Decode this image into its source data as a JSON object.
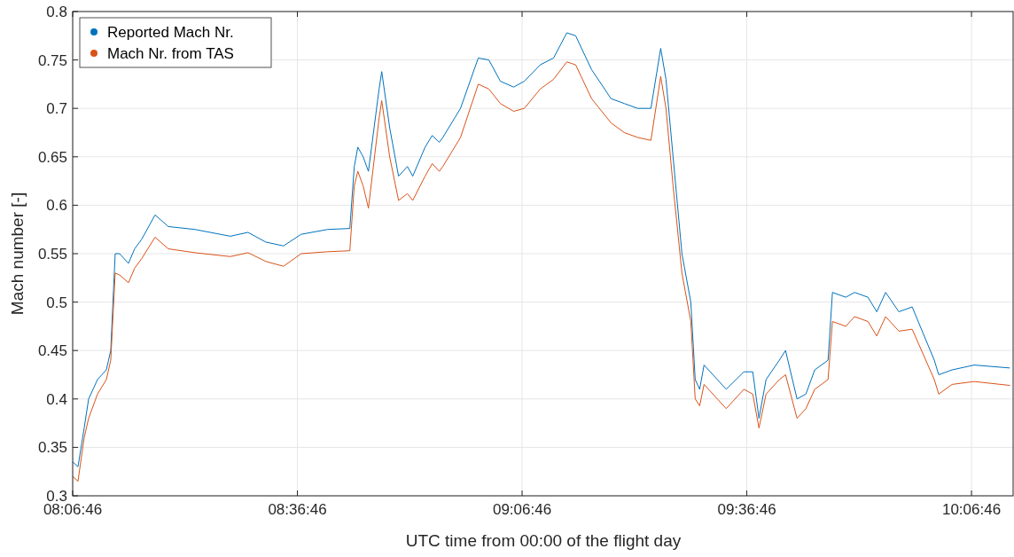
{
  "chart_data": {
    "type": "line",
    "xlabel": "UTC time from 00:00 of the flight day",
    "ylabel": "Mach number  [-]",
    "x": [
      8.1128,
      8.1246,
      8.1384,
      8.1483,
      8.168,
      8.1877,
      8.1975,
      8.2074,
      8.2172,
      8.2369,
      8.2507,
      8.2665,
      8.2961,
      8.3256,
      8.3847,
      8.4635,
      8.5029,
      8.5424,
      8.5818,
      8.6212,
      8.6803,
      8.7295,
      8.7394,
      8.7473,
      8.7591,
      8.7709,
      8.7946,
      8.8005,
      8.8182,
      8.8379,
      8.8576,
      8.8695,
      8.897,
      8.9128,
      8.9286,
      8.9364,
      8.9758,
      9.0153,
      9.0389,
      9.0645,
      9.0941,
      9.1177,
      9.1532,
      9.1828,
      9.2123,
      9.232,
      9.2675,
      9.3108,
      9.3404,
      9.3699,
      9.3995,
      9.4212,
      9.433,
      9.4488,
      9.4685,
      9.4882,
      9.498,
      9.5079,
      9.5177,
      9.5473,
      9.567,
      9.6064,
      9.6261,
      9.6399,
      9.6557,
      9.6852,
      9.699,
      9.7246,
      9.7443,
      9.764,
      9.7936,
      9.8034,
      9.833,
      9.8527,
      9.8823,
      9.902,
      9.9217,
      9.9512,
      9.9808,
      10.03,
      10.0399,
      10.0695,
      10.1187,
      10.1975
    ],
    "series": [
      {
        "name": "Reported Mach Nr.",
        "color": "#0072bd",
        "values": [
          0.335,
          0.33,
          0.37,
          0.4,
          0.42,
          0.43,
          0.45,
          0.55,
          0.55,
          0.54,
          0.555,
          0.565,
          0.59,
          0.578,
          0.575,
          0.568,
          0.572,
          0.562,
          0.558,
          0.57,
          0.575,
          0.576,
          0.64,
          0.66,
          0.65,
          0.635,
          0.72,
          0.738,
          0.68,
          0.63,
          0.64,
          0.63,
          0.66,
          0.672,
          0.665,
          0.67,
          0.7,
          0.752,
          0.75,
          0.728,
          0.722,
          0.728,
          0.745,
          0.752,
          0.778,
          0.775,
          0.74,
          0.71,
          0.705,
          0.7,
          0.7,
          0.762,
          0.73,
          0.65,
          0.55,
          0.5,
          0.42,
          0.41,
          0.435,
          0.42,
          0.41,
          0.428,
          0.428,
          0.38,
          0.42,
          0.44,
          0.45,
          0.4,
          0.405,
          0.43,
          0.44,
          0.51,
          0.505,
          0.51,
          0.505,
          0.49,
          0.51,
          0.49,
          0.495,
          0.44,
          0.425,
          0.43,
          0.435,
          0.432
        ]
      },
      {
        "name": "Mach Nr. from TAS",
        "color": "#d95319",
        "values": [
          0.32,
          0.315,
          0.36,
          0.38,
          0.405,
          0.42,
          0.44,
          0.53,
          0.528,
          0.52,
          0.535,
          0.545,
          0.567,
          0.555,
          0.551,
          0.547,
          0.551,
          0.542,
          0.537,
          0.55,
          0.552,
          0.553,
          0.62,
          0.635,
          0.62,
          0.597,
          0.69,
          0.708,
          0.65,
          0.605,
          0.612,
          0.605,
          0.63,
          0.643,
          0.635,
          0.64,
          0.67,
          0.725,
          0.72,
          0.705,
          0.697,
          0.7,
          0.72,
          0.73,
          0.748,
          0.745,
          0.71,
          0.685,
          0.675,
          0.67,
          0.667,
          0.733,
          0.7,
          0.62,
          0.53,
          0.48,
          0.4,
          0.393,
          0.415,
          0.4,
          0.39,
          0.41,
          0.405,
          0.37,
          0.405,
          0.42,
          0.425,
          0.38,
          0.39,
          0.41,
          0.42,
          0.48,
          0.475,
          0.485,
          0.48,
          0.465,
          0.485,
          0.47,
          0.472,
          0.42,
          0.405,
          0.415,
          0.418,
          0.414
        ]
      }
    ],
    "xlim": [
      8.1128,
      10.2054
    ],
    "xticks": [
      {
        "value": 8.1128,
        "label": "08:06:46"
      },
      {
        "value": 8.6128,
        "label": "08:36:46"
      },
      {
        "value": 9.1128,
        "label": "09:06:46"
      },
      {
        "value": 9.6128,
        "label": "09:36:46"
      },
      {
        "value": 10.1128,
        "label": "10:06:46"
      }
    ],
    "ylim": [
      0.3,
      0.8
    ],
    "yticks": [
      0.3,
      0.35,
      0.4,
      0.45,
      0.5,
      0.55,
      0.6,
      0.65,
      0.7,
      0.75,
      0.8
    ],
    "grid": true,
    "legend": "top left"
  }
}
